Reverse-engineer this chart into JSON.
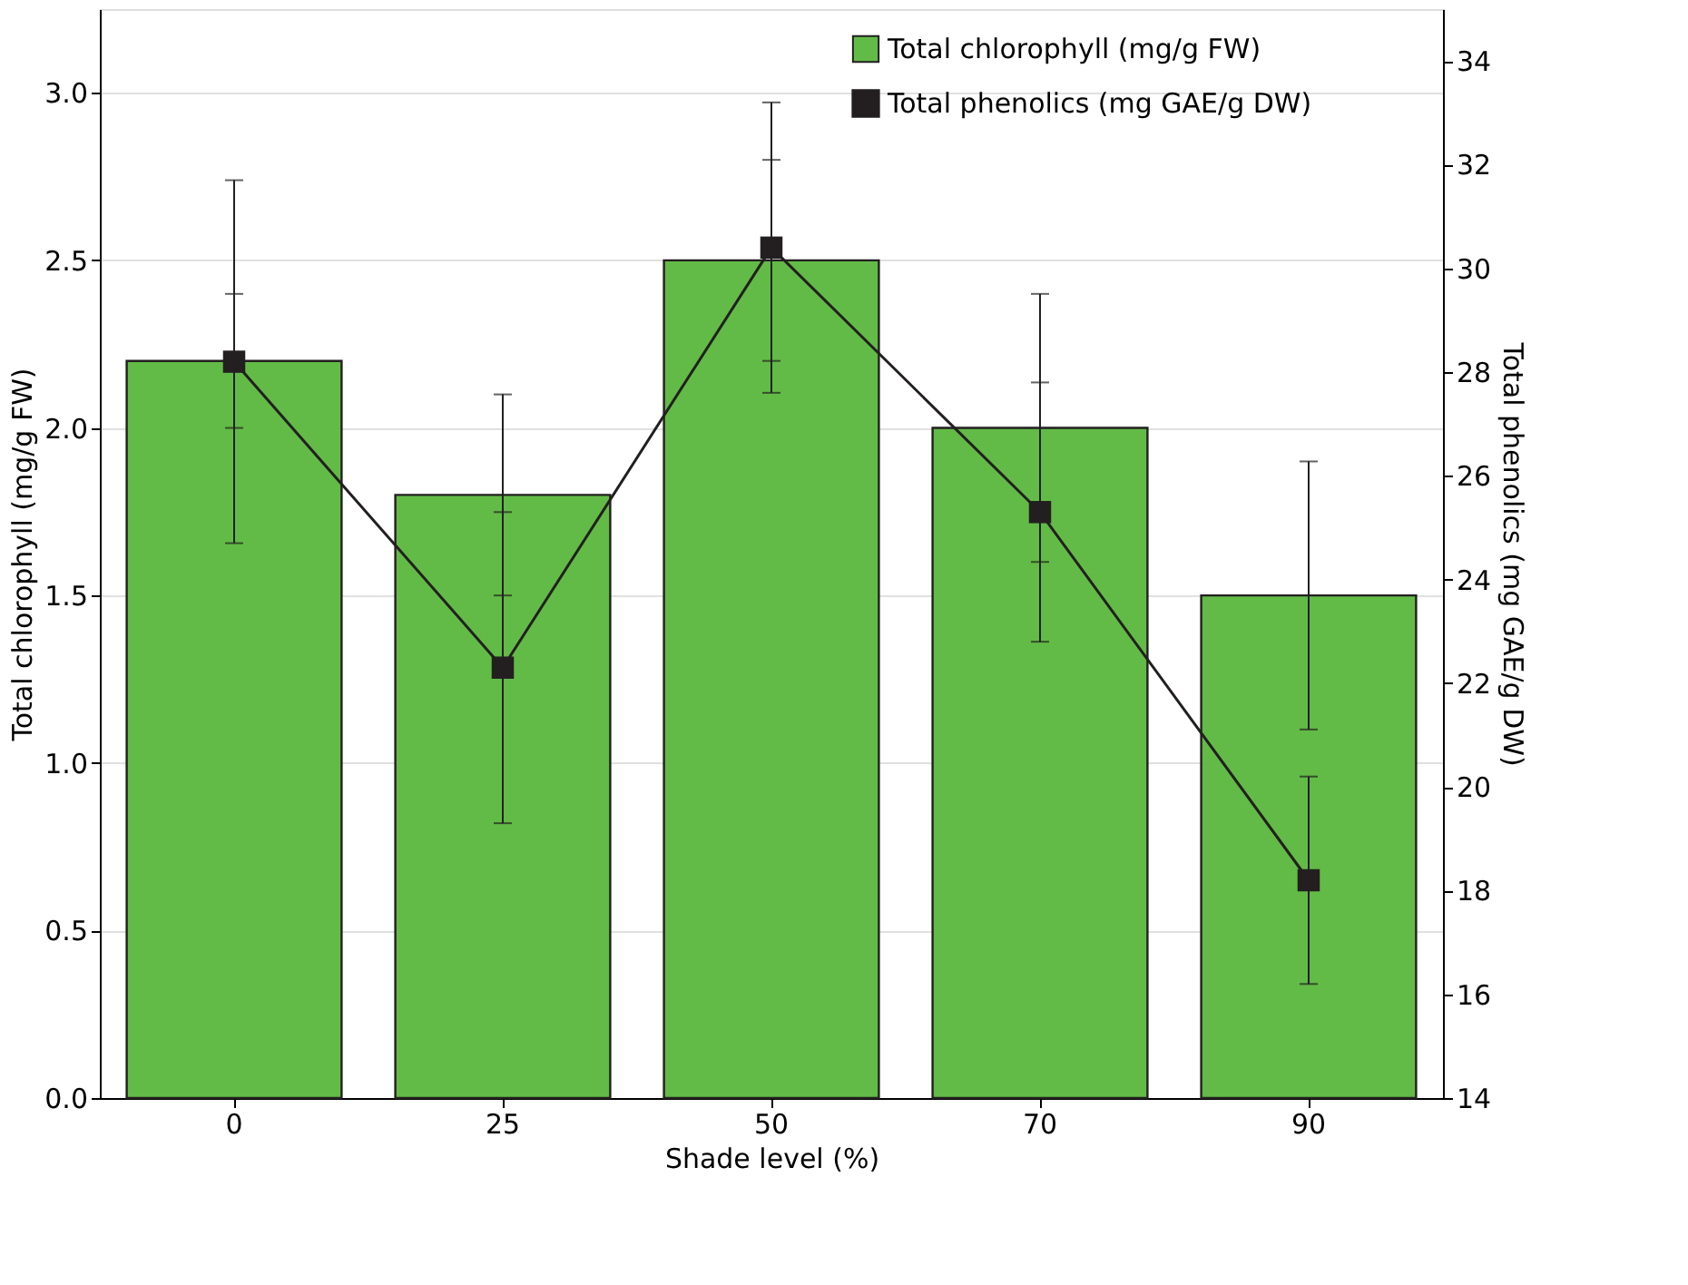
{
  "chart_data": {
    "type": "bar",
    "xlabel": "Shade level (%)",
    "ylabel": "Total chlorophyll (mg/g FW)",
    "y2label": "Total phenolics (mg GAE/g DW)",
    "categories": [
      "0",
      "25",
      "50",
      "70",
      "90"
    ],
    "series": [
      {
        "name": "Total chlorophyll (mg/g FW)",
        "color": "#62bb46",
        "values": [
          2.2,
          1.8,
          2.5,
          2.0,
          1.5
        ],
        "errors": [
          0.2,
          0.3,
          0.3,
          0.4,
          0.4
        ]
      },
      {
        "name": "Total phenolics (mg GAE/g DW)",
        "type": "line",
        "axis": "y2",
        "color": "#231f20",
        "values": [
          28.2,
          22.3,
          30.4,
          25.3,
          18.2
        ],
        "errors": [
          3.5,
          3.0,
          2.8,
          2.5,
          2.0
        ],
        "marker": "square",
        "line_style": "solid"
      }
    ],
    "ylim": [
      0,
      3.25
    ],
    "yticks": [
      {
        "value": 0,
        "label": "0.0"
      },
      {
        "value": 0.5,
        "label": "0.5"
      },
      {
        "value": 1,
        "label": "1.0"
      },
      {
        "value": 1.5,
        "label": "1.5"
      },
      {
        "value": 2,
        "label": "2.0"
      },
      {
        "value": 2.5,
        "label": "2.5"
      },
      {
        "value": 3,
        "label": "3.0"
      }
    ],
    "y2lim": [
      14,
      35
    ],
    "y2ticks": [
      14,
      16,
      18,
      20,
      22,
      24,
      26,
      28,
      30,
      32,
      34
    ],
    "grid": "y",
    "legend": "top right"
  }
}
